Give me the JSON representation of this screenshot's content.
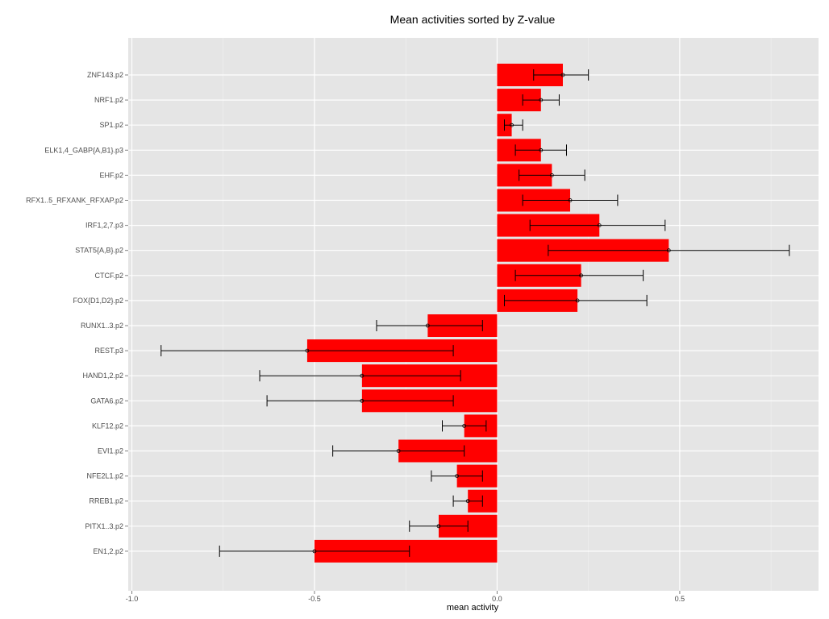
{
  "chart_data": {
    "type": "bar",
    "orientation": "horizontal",
    "title": "Mean activities sorted by Z-value",
    "xlabel": "mean activity",
    "ylabel": "",
    "xlim": [
      -1.01,
      0.88
    ],
    "xticks": [
      -1.0,
      -0.5,
      0.0,
      0.5
    ],
    "xtick_labels": [
      "-1.0",
      "-0.5",
      "0.0",
      "0.5"
    ],
    "grid": true,
    "bar_color": "#ff0000",
    "panel_color": "#e5e5e5",
    "grid_color": "#ffffff",
    "categories": [
      "ZNF143.p2",
      "NRF1.p2",
      "SP1.p2",
      "ELK1,4_GABP{A,B1}.p3",
      "EHF.p2",
      "RFX1..5_RFXANK_RFXAP.p2",
      "IRF1,2,7.p3",
      "STAT5{A,B}.p2",
      "CTCF.p2",
      "FOX{D1,D2}.p2",
      "RUNX1..3.p2",
      "REST.p3",
      "HAND1,2.p2",
      "GATA6.p2",
      "KLF12.p2",
      "EVI1.p2",
      "NFE2L1.p2",
      "RREB1.p2",
      "PITX1..3.p2",
      "EN1,2.p2"
    ],
    "values": [
      0.18,
      0.12,
      0.04,
      0.12,
      0.15,
      0.2,
      0.28,
      0.47,
      0.23,
      0.22,
      -0.19,
      -0.52,
      -0.37,
      -0.37,
      -0.09,
      -0.27,
      -0.11,
      -0.08,
      -0.16,
      -0.5
    ],
    "error_lower": [
      0.1,
      0.07,
      0.02,
      0.05,
      0.06,
      0.07,
      0.09,
      0.14,
      0.05,
      0.02,
      -0.33,
      -0.92,
      -0.65,
      -0.63,
      -0.15,
      -0.45,
      -0.18,
      -0.12,
      -0.24,
      -0.76
    ],
    "error_upper": [
      0.25,
      0.17,
      0.07,
      0.19,
      0.24,
      0.33,
      0.46,
      0.8,
      0.4,
      0.41,
      -0.04,
      -0.12,
      -0.1,
      -0.12,
      -0.03,
      -0.09,
      -0.04,
      -0.04,
      -0.08,
      -0.24
    ]
  }
}
